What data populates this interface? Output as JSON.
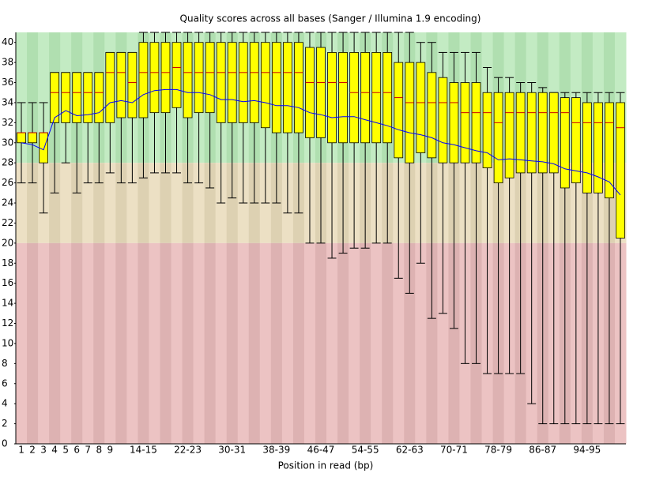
{
  "chart_data": {
    "type": "boxplot",
    "title": "Quality scores across all bases (Sanger / Illumina 1.9 encoding)",
    "x_label": "Position in read (bp)",
    "categories": [
      "1",
      "2",
      "3",
      "4",
      "5",
      "6",
      "7",
      "8",
      "9",
      null,
      null,
      "14-15",
      null,
      null,
      null,
      "22-23",
      null,
      null,
      null,
      "30-31",
      null,
      null,
      null,
      "38-39",
      null,
      null,
      null,
      "46-47",
      null,
      null,
      null,
      "54-55",
      null,
      null,
      null,
      "62-63",
      null,
      null,
      null,
      "70-71",
      null,
      null,
      null,
      "78-79",
      null,
      null,
      null,
      "86-87",
      null,
      null,
      null,
      "94-95",
      null,
      null,
      null
    ],
    "whisker_low": [
      26,
      26,
      23,
      25,
      28,
      25,
      26,
      26,
      27,
      26,
      26,
      26.5,
      27,
      27,
      27,
      26,
      26,
      25.5,
      24,
      24.5,
      24,
      24,
      24,
      24,
      23,
      23,
      20,
      20,
      18.5,
      19,
      19.5,
      19.5,
      20,
      20,
      16.5,
      15,
      18,
      12.5,
      13,
      11.5,
      8,
      8,
      7,
      7,
      7,
      7,
      4,
      2,
      2,
      2,
      2,
      2,
      2,
      2,
      2
    ],
    "q1": [
      30,
      30,
      28,
      32,
      32,
      32,
      32,
      32,
      32,
      32.5,
      32.5,
      32.5,
      33,
      33,
      33.5,
      32.5,
      33,
      33,
      32,
      32,
      32,
      32,
      31.5,
      31,
      31,
      31,
      30.5,
      30.5,
      30,
      30,
      30,
      30,
      30,
      30,
      28.5,
      28,
      29,
      28.5,
      28,
      28,
      28,
      28,
      27.5,
      26,
      26.5,
      27,
      27,
      27,
      27,
      25.5,
      26,
      25,
      25,
      24.5,
      20.5
    ],
    "median": [
      31,
      31,
      31,
      35,
      35,
      35,
      35,
      35,
      37,
      37,
      36,
      37,
      37,
      37,
      37.5,
      37,
      37,
      37,
      37,
      37,
      37,
      37,
      37,
      37,
      37,
      37,
      36,
      36,
      36,
      36,
      35,
      35,
      35,
      35,
      34.5,
      34,
      34,
      34,
      34,
      34,
      33,
      33,
      33,
      32,
      33,
      33,
      33,
      33,
      33,
      33,
      32,
      32,
      32,
      32,
      31.5
    ],
    "q3": [
      31,
      31,
      31,
      37,
      37,
      37,
      37,
      37,
      39,
      39,
      39,
      40,
      40,
      40,
      40,
      40,
      40,
      40,
      40,
      40,
      40,
      40,
      40,
      40,
      40,
      40,
      39.5,
      39.5,
      39,
      39,
      39,
      39,
      39,
      39,
      38,
      38,
      38,
      37,
      36.5,
      36,
      36,
      36,
      35,
      35,
      35,
      35,
      35,
      35,
      35,
      34.5,
      34.5,
      34,
      34,
      34,
      34
    ],
    "whisker_high": [
      34,
      34,
      34,
      37,
      37,
      37,
      37,
      37,
      39,
      39,
      39,
      41,
      41,
      41,
      41,
      41,
      41,
      41,
      41,
      41,
      41,
      41,
      41,
      41,
      41,
      41,
      41,
      41,
      41,
      41,
      41,
      41,
      41,
      41,
      41,
      41,
      40,
      40,
      39,
      39,
      39,
      39,
      37.5,
      36.5,
      36.5,
      36,
      36,
      35.5,
      35,
      35,
      35,
      35,
      35,
      35,
      35
    ],
    "mean": [
      30,
      29.8,
      29.3,
      32.5,
      33.2,
      32.7,
      32.8,
      33,
      34,
      34.2,
      34,
      34.8,
      35.2,
      35.3,
      35.3,
      35,
      35,
      34.8,
      34.3,
      34.3,
      34.1,
      34.2,
      34,
      33.7,
      33.7,
      33.5,
      33,
      32.8,
      32.5,
      32.6,
      32.6,
      32.3,
      32,
      31.7,
      31.3,
      31,
      30.8,
      30.5,
      30,
      29.8,
      29.5,
      29.2,
      29,
      28.3,
      28.4,
      28.3,
      28.2,
      28.1,
      27.9,
      27.4,
      27.2,
      27,
      26.6,
      26.1,
      24.8
    ],
    "box_color": "#ffff00",
    "median_color": "#cc0000",
    "mean_color": "#0000ff",
    "zones": [
      {
        "from": 28,
        "to": 41,
        "colors": [
          "#c3ebc3",
          "#b0dfb0"
        ]
      },
      {
        "from": 20,
        "to": 28,
        "colors": [
          "#ece0c4",
          "#ddd1b2"
        ]
      },
      {
        "from": 0,
        "to": 20,
        "colors": [
          "#ecc3c3",
          "#ddb2b2"
        ]
      }
    ],
    "ylim": [
      0,
      41
    ],
    "yticks": [
      0,
      2,
      4,
      6,
      8,
      10,
      12,
      14,
      16,
      18,
      20,
      22,
      24,
      26,
      28,
      30,
      32,
      34,
      36,
      38,
      40
    ]
  }
}
